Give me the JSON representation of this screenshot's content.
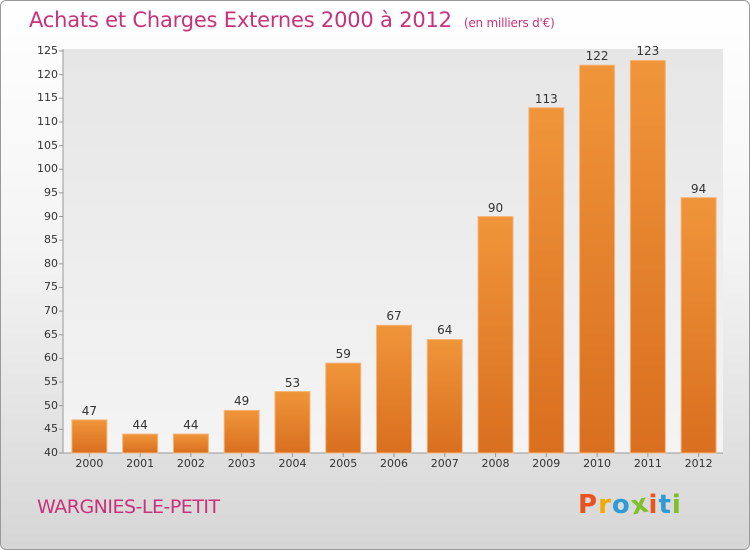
{
  "chart_data": {
    "type": "bar",
    "title": "Achats et Charges Externes 2000 à 2012",
    "subtitle": "(en milliers d'€)",
    "categories": [
      "2000",
      "2001",
      "2002",
      "2003",
      "2004",
      "2005",
      "2006",
      "2007",
      "2008",
      "2009",
      "2010",
      "2011",
      "2012"
    ],
    "values": [
      47,
      44,
      44,
      49,
      53,
      59,
      67,
      64,
      90,
      113,
      122,
      123,
      94
    ],
    "ylim": [
      40,
      125
    ],
    "yticks": [
      40,
      45,
      50,
      55,
      60,
      65,
      70,
      75,
      80,
      85,
      90,
      95,
      100,
      105,
      110,
      115,
      120,
      125
    ],
    "xlabel": "",
    "ylabel": "",
    "grid": false,
    "bar_color": "#f0953a",
    "bar_color_dark": "#d96f1f"
  },
  "footer": {
    "commune": "WARGNIES-LE-PETIT",
    "logo_text": "Proxiti",
    "logo_colors": [
      "#e8541e",
      "#f2a900",
      "#2f9bd6",
      "#7fbf2a",
      "#e8541e",
      "#2f9bd6",
      "#7fbf2a"
    ]
  }
}
